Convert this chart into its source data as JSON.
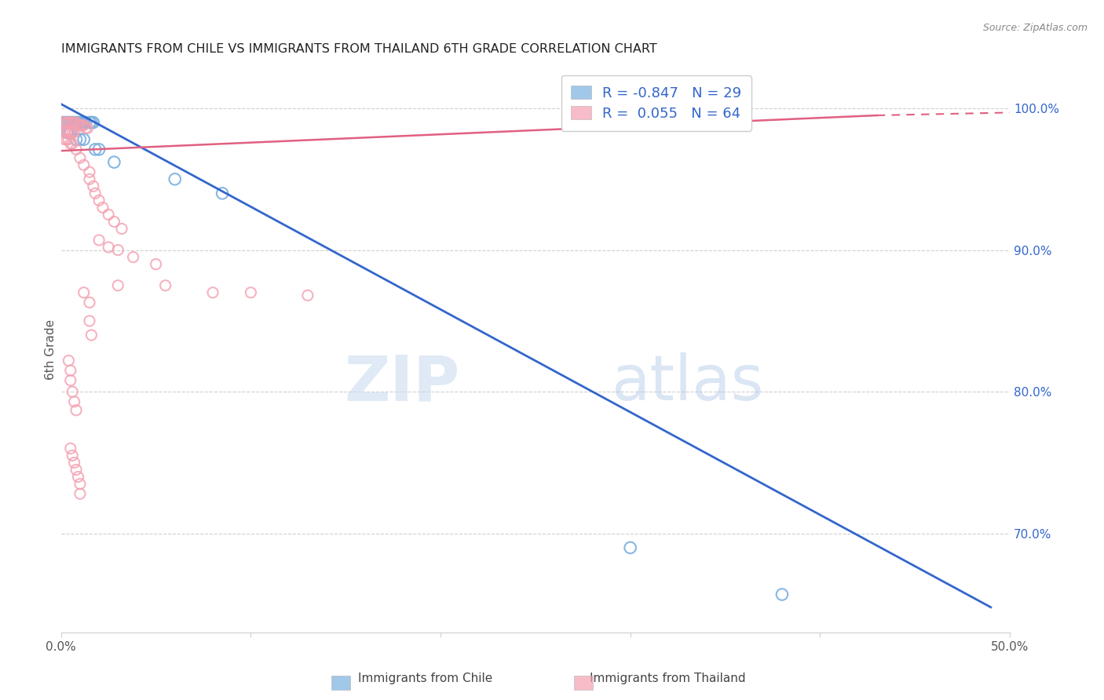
{
  "title": "IMMIGRANTS FROM CHILE VS IMMIGRANTS FROM THAILAND 6TH GRADE CORRELATION CHART",
  "source": "Source: ZipAtlas.com",
  "ylabel": "6th Grade",
  "chile_color": "#7ab0e0",
  "thailand_color": "#f4a0b0",
  "chile_line_color": "#3366cc",
  "thailand_line_color": "#e06080",
  "watermark_zip": "ZIP",
  "watermark_atlas": "atlas",
  "chile_points": [
    [
      0.001,
      0.99
    ],
    [
      0.002,
      0.99
    ],
    [
      0.003,
      0.99
    ],
    [
      0.004,
      0.99
    ],
    [
      0.005,
      0.99
    ],
    [
      0.006,
      0.99
    ],
    [
      0.007,
      0.99
    ],
    [
      0.008,
      0.99
    ],
    [
      0.009,
      0.99
    ],
    [
      0.01,
      0.99
    ],
    [
      0.011,
      0.99
    ],
    [
      0.012,
      0.99
    ],
    [
      0.013,
      0.99
    ],
    [
      0.015,
      0.99
    ],
    [
      0.016,
      0.99
    ],
    [
      0.017,
      0.99
    ],
    [
      0.003,
      0.983
    ],
    [
      0.004,
      0.983
    ],
    [
      0.005,
      0.983
    ],
    [
      0.008,
      0.978
    ],
    [
      0.01,
      0.978
    ],
    [
      0.012,
      0.978
    ],
    [
      0.018,
      0.971
    ],
    [
      0.02,
      0.971
    ],
    [
      0.028,
      0.962
    ],
    [
      0.06,
      0.95
    ],
    [
      0.085,
      0.94
    ],
    [
      0.38,
      0.657
    ],
    [
      0.3,
      0.69
    ]
  ],
  "thailand_points": [
    [
      0.001,
      0.99
    ],
    [
      0.002,
      0.99
    ],
    [
      0.003,
      0.99
    ],
    [
      0.004,
      0.99
    ],
    [
      0.005,
      0.99
    ],
    [
      0.006,
      0.99
    ],
    [
      0.007,
      0.99
    ],
    [
      0.008,
      0.99
    ],
    [
      0.009,
      0.988
    ],
    [
      0.01,
      0.988
    ],
    [
      0.011,
      0.988
    ],
    [
      0.012,
      0.988
    ],
    [
      0.013,
      0.986
    ],
    [
      0.014,
      0.986
    ],
    [
      0.002,
      0.983
    ],
    [
      0.003,
      0.983
    ],
    [
      0.004,
      0.983
    ],
    [
      0.005,
      0.983
    ],
    [
      0.006,
      0.983
    ],
    [
      0.007,
      0.983
    ],
    [
      0.002,
      0.978
    ],
    [
      0.003,
      0.978
    ],
    [
      0.004,
      0.978
    ],
    [
      0.005,
      0.975
    ],
    [
      0.006,
      0.975
    ],
    [
      0.008,
      0.971
    ],
    [
      0.01,
      0.965
    ],
    [
      0.012,
      0.96
    ],
    [
      0.015,
      0.955
    ],
    [
      0.015,
      0.95
    ],
    [
      0.017,
      0.945
    ],
    [
      0.018,
      0.94
    ],
    [
      0.02,
      0.935
    ],
    [
      0.022,
      0.93
    ],
    [
      0.025,
      0.925
    ],
    [
      0.028,
      0.92
    ],
    [
      0.032,
      0.915
    ],
    [
      0.02,
      0.907
    ],
    [
      0.025,
      0.902
    ],
    [
      0.03,
      0.9
    ],
    [
      0.038,
      0.895
    ],
    [
      0.05,
      0.89
    ],
    [
      0.012,
      0.87
    ],
    [
      0.015,
      0.863
    ],
    [
      0.015,
      0.85
    ],
    [
      0.016,
      0.84
    ],
    [
      0.03,
      0.875
    ],
    [
      0.055,
      0.875
    ],
    [
      0.08,
      0.87
    ],
    [
      0.1,
      0.87
    ],
    [
      0.13,
      0.868
    ],
    [
      0.004,
      0.822
    ],
    [
      0.005,
      0.815
    ],
    [
      0.005,
      0.808
    ],
    [
      0.006,
      0.8
    ],
    [
      0.007,
      0.793
    ],
    [
      0.008,
      0.787
    ],
    [
      0.005,
      0.76
    ],
    [
      0.006,
      0.755
    ],
    [
      0.007,
      0.75
    ],
    [
      0.008,
      0.745
    ],
    [
      0.009,
      0.74
    ],
    [
      0.01,
      0.735
    ],
    [
      0.01,
      0.728
    ]
  ],
  "chile_line": [
    [
      0.0,
      1.003
    ],
    [
      0.49,
      0.648
    ]
  ],
  "thailand_line_solid": [
    [
      0.0,
      0.97
    ],
    [
      0.43,
      0.995
    ]
  ],
  "thailand_line_dashed": [
    [
      0.43,
      0.995
    ],
    [
      0.5,
      0.997
    ]
  ],
  "xlim": [
    0.0,
    0.5
  ],
  "ylim": [
    0.63,
    1.03
  ],
  "xticks": [
    0.0,
    0.1,
    0.2,
    0.3,
    0.4,
    0.5
  ],
  "xticklabels": [
    "0.0%",
    "",
    "",
    "",
    "",
    "50.0%"
  ],
  "right_yticks": [
    1.0,
    0.9,
    0.8,
    0.7
  ],
  "right_ytick_labels": [
    "100.0%",
    "90.0%",
    "80.0%",
    "70.0%"
  ],
  "legend_labels": [
    "R = -0.847   N = 29",
    "R =  0.055   N = 64"
  ],
  "bottom_legend": [
    "Immigrants from Chile",
    "Immigrants from Thailand"
  ]
}
